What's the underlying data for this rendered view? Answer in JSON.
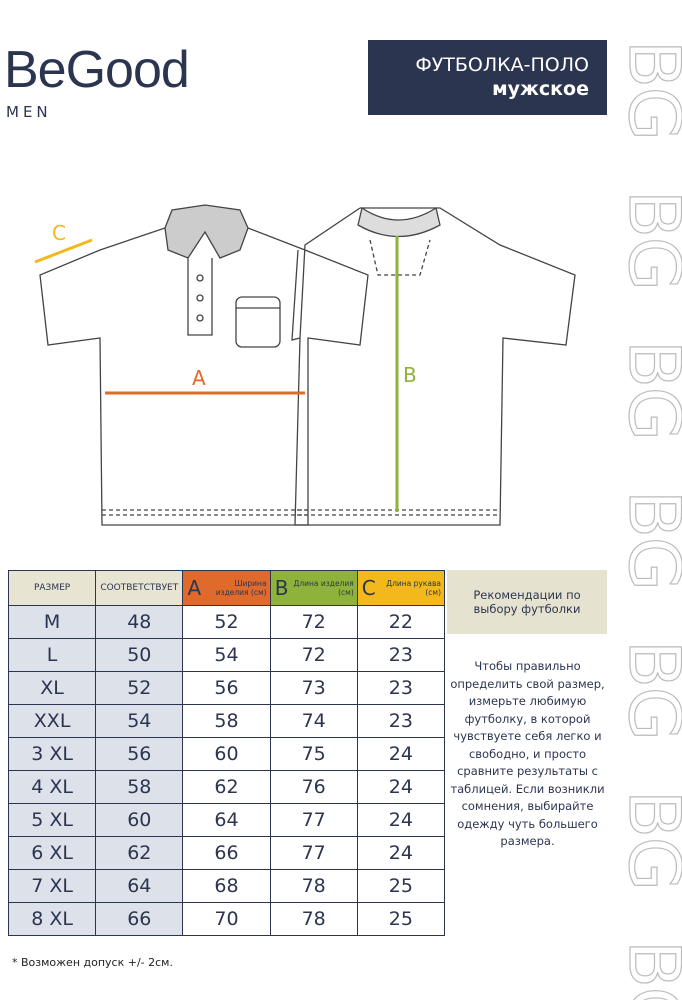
{
  "header": {
    "brand": "BeGood",
    "sub": "MEN",
    "title": "ФУТБОЛКА-ПОЛО",
    "subtitle": "мужское"
  },
  "watermark": "BG",
  "diagram": {
    "c": "C",
    "a": "A",
    "b": "B"
  },
  "table": {
    "headers": [
      "РАЗМЕР",
      "СООТВЕТСТВУЕТ",
      {
        "letter": "A",
        "text": "Ширина изделия (см)"
      },
      {
        "letter": "B",
        "text": "Длина изделия (см)"
      },
      {
        "letter": "C",
        "text": "Длина рукава (см)"
      }
    ],
    "rows": [
      [
        "M",
        "48",
        "52",
        "72",
        "22"
      ],
      [
        "L",
        "50",
        "54",
        "72",
        "23"
      ],
      [
        "XL",
        "52",
        "56",
        "73",
        "23"
      ],
      [
        "XXL",
        "54",
        "58",
        "74",
        "23"
      ],
      [
        "3 XL",
        "56",
        "60",
        "75",
        "24"
      ],
      [
        "4 XL",
        "58",
        "62",
        "76",
        "24"
      ],
      [
        "5 XL",
        "60",
        "64",
        "77",
        "24"
      ],
      [
        "6 XL",
        "62",
        "66",
        "77",
        "24"
      ],
      [
        "7 XL",
        "64",
        "68",
        "78",
        "25"
      ],
      [
        "8 XL",
        "66",
        "70",
        "78",
        "25"
      ]
    ]
  },
  "advice": {
    "title": "Рекомендации по выбору футболки",
    "text": "Чтобы правильно определить свой размер, измерьте любимую футболку, в которой чувствуете себя легко и свободно, и просто сравните результаты с таблицей. Если возникли сомнения, выбирайте одежду чуть большего размера."
  },
  "footnote": "* Возможен допуск +/- 2см."
}
